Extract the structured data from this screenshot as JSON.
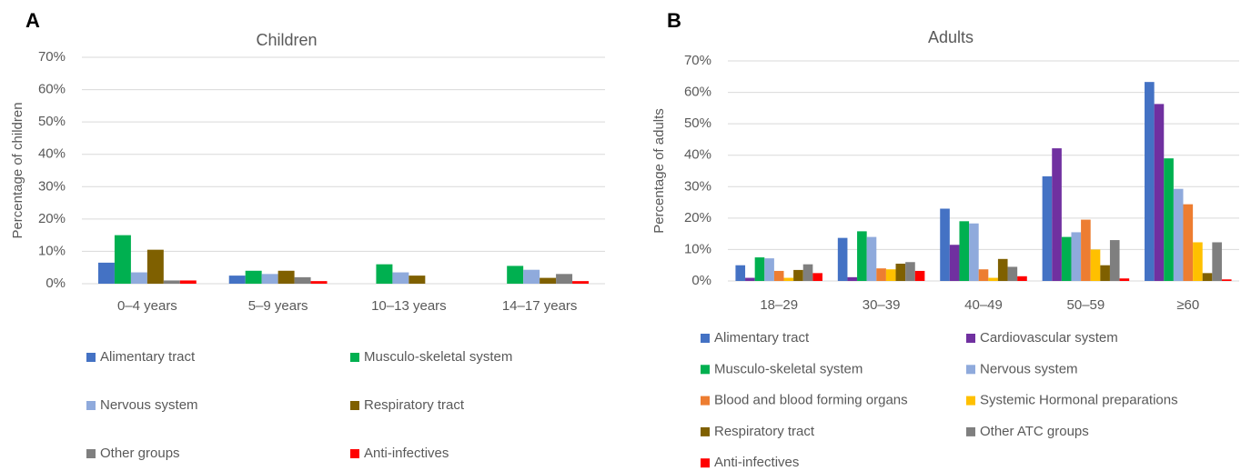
{
  "chart_data": [
    {
      "type": "bar",
      "panel_label": "A",
      "title": "Children",
      "y_label": "Percentage of children",
      "categories": [
        "0–4  years",
        "5–9 years",
        "10–13 years",
        "14–17 years"
      ],
      "ylim": [
        0,
        70
      ],
      "yticks": [
        {
          "value": 0,
          "label": "0%"
        },
        {
          "value": 10,
          "label": "10%"
        },
        {
          "value": 20,
          "label": "20%"
        },
        {
          "value": 30,
          "label": "30%"
        },
        {
          "value": 40,
          "label": "40%"
        },
        {
          "value": 50,
          "label": "50%"
        },
        {
          "value": 60,
          "label": "60%"
        },
        {
          "value": 70,
          "label": "70%"
        }
      ],
      "grid": true,
      "series": [
        {
          "name": "Alimentary tract",
          "color": "#4472c4",
          "values": [
            6.5,
            2.5,
            0,
            0
          ]
        },
        {
          "name": "Musculo-skeletal system",
          "color": "#00b050",
          "values": [
            15,
            4,
            6,
            5.5
          ]
        },
        {
          "name": "Nervous system",
          "color": "#8faadc",
          "values": [
            3.5,
            3,
            3.5,
            4.3
          ]
        },
        {
          "name": "Respiratory tract",
          "color": "#7f6000",
          "values": [
            10.5,
            4,
            2.5,
            1.8
          ]
        },
        {
          "name": "Other groups",
          "color": "#7f7f7f",
          "values": [
            1,
            2,
            0,
            3
          ]
        },
        {
          "name": "Anti-infectives",
          "color": "#ff0000",
          "values": [
            1,
            0.8,
            0,
            0.8
          ]
        }
      ]
    },
    {
      "type": "bar",
      "panel_label": "B",
      "title": "Adults",
      "y_label": "Percentage of adults",
      "categories": [
        "18–29",
        "30–39",
        "40–49",
        "50–59",
        "≥60"
      ],
      "ylim": [
        0,
        70
      ],
      "yticks": [
        {
          "value": 0,
          "label": "0%"
        },
        {
          "value": 10,
          "label": "10%"
        },
        {
          "value": 20,
          "label": "20%"
        },
        {
          "value": 30,
          "label": "30%"
        },
        {
          "value": 40,
          "label": "40%"
        },
        {
          "value": 50,
          "label": "50%"
        },
        {
          "value": 60,
          "label": "60%"
        },
        {
          "value": 70,
          "label": "70%"
        }
      ],
      "grid": true,
      "series": [
        {
          "name": "Alimentary tract",
          "color": "#4472c4",
          "values": [
            5,
            13.7,
            23,
            33.3,
            63.3
          ]
        },
        {
          "name": "Cardiovascular system",
          "color": "#7030a0",
          "values": [
            1,
            1.2,
            11.5,
            42.2,
            56.3
          ]
        },
        {
          "name": "Musculo-skeletal system",
          "color": "#00b050",
          "values": [
            7.5,
            15.8,
            19,
            14,
            39
          ]
        },
        {
          "name": "Nervous system",
          "color": "#8faadc",
          "values": [
            7.2,
            14,
            18.3,
            15.5,
            29.3
          ]
        },
        {
          "name": "Blood and blood forming organs",
          "color": "#ed7d31",
          "values": [
            3.2,
            4,
            3.7,
            19.5,
            24.4
          ]
        },
        {
          "name": "Systemic Hormonal preparations",
          "color": "#ffc000",
          "values": [
            1,
            3.7,
            1,
            10,
            12.3
          ]
        },
        {
          "name": "Respiratory tract",
          "color": "#7f6000",
          "values": [
            3.5,
            5.5,
            7,
            5,
            2.5
          ]
        },
        {
          "name": "Other ATC groups",
          "color": "#7f7f7f",
          "values": [
            5.3,
            6,
            4.5,
            13,
            12.3
          ]
        },
        {
          "name": "Anti-infectives",
          "color": "#ff0000",
          "values": [
            2.5,
            3.2,
            1.5,
            0.8,
            0.5
          ]
        }
      ]
    }
  ]
}
